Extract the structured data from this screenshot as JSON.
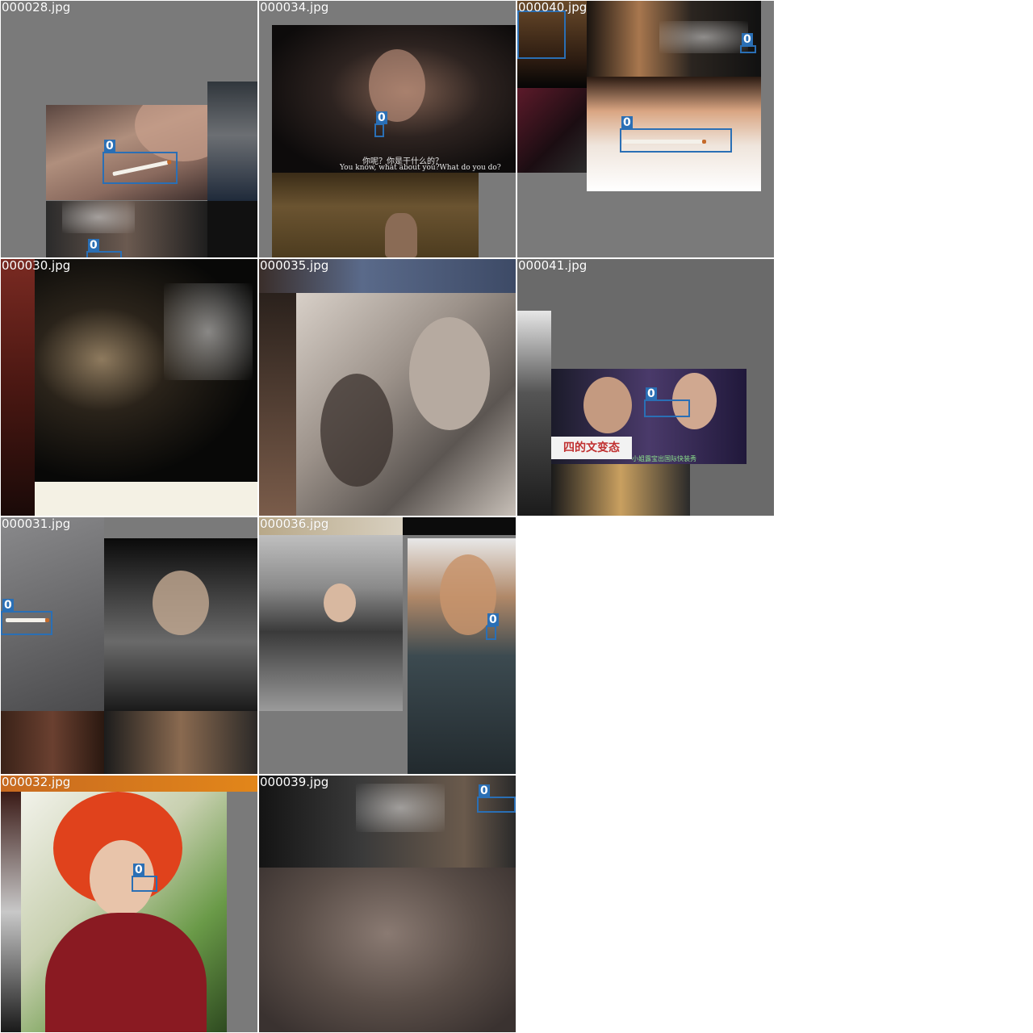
{
  "grid": {
    "tiles": [
      {
        "id": "t28",
        "title": "000028.jpg",
        "label": "0",
        "labels": [
          "0",
          "0"
        ]
      },
      {
        "id": "t34",
        "title": "000034.jpg",
        "label": "0",
        "subtitle_cn": "你呢？你是干什么的？",
        "subtitle_en": "You know, what about you?What do you do?"
      },
      {
        "id": "t40",
        "title": "000040.jpg",
        "label": "0",
        "labels": [
          "0",
          "0"
        ]
      },
      {
        "id": "t30",
        "title": "000030.jpg"
      },
      {
        "id": "t35",
        "title": "000035.jpg"
      },
      {
        "id": "t41",
        "title": "000041.jpg",
        "label": "0",
        "sign": "四的文变态",
        "ticker": "小姐露宝出国际快装秀"
      },
      {
        "id": "t31",
        "title": "000031.jpg",
        "label": "0"
      },
      {
        "id": "t36",
        "title": "000036.jpg",
        "label": "0"
      },
      {
        "id": "t32",
        "title": "000032.jpg",
        "label": "0"
      },
      {
        "id": "t39",
        "title": "000039.jpg",
        "label": "0"
      }
    ]
  },
  "colors": {
    "bbox": "#2a6fb5",
    "pad": "#7a7a7a",
    "background": "#ffffff"
  }
}
